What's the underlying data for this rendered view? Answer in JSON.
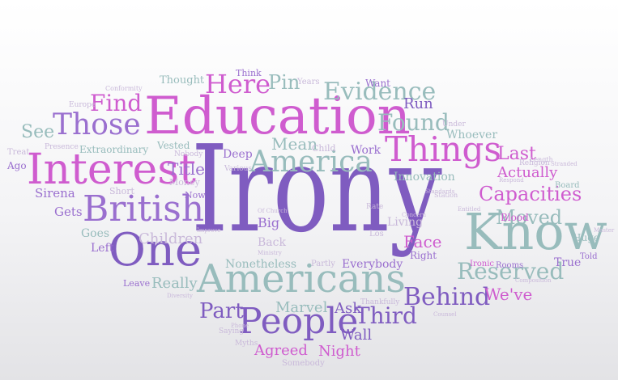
{
  "colors": {
    "purple": "#7f5cc0",
    "violet": "#9a6fcf",
    "magenta": "#cf5ccf",
    "pink": "#dd7fd9",
    "teal": "#98bcbc",
    "teal_dark": "#7faeae",
    "light": "#c9b9da"
  },
  "words": [
    {
      "text": "Irony",
      "color": "purple"
    },
    {
      "text": "Education",
      "color": "magenta"
    },
    {
      "text": "Interest",
      "color": "magenta"
    },
    {
      "text": "Americans",
      "color": "teal"
    },
    {
      "text": "Know",
      "color": "teal"
    },
    {
      "text": "British",
      "color": "violet"
    },
    {
      "text": "Things",
      "color": "magenta"
    },
    {
      "text": "One",
      "color": "purple"
    },
    {
      "text": "People",
      "color": "purple"
    },
    {
      "text": "America",
      "color": "teal"
    },
    {
      "text": "Those",
      "color": "violet"
    },
    {
      "text": "Evidence",
      "color": "teal"
    },
    {
      "text": "Here",
      "color": "magenta"
    },
    {
      "text": "Find",
      "color": "magenta"
    },
    {
      "text": "Found",
      "color": "teal"
    },
    {
      "text": "Capacities",
      "color": "magenta"
    },
    {
      "text": "Moved",
      "color": "teal"
    },
    {
      "text": "Reserved",
      "color": "teal"
    },
    {
      "text": "Behind",
      "color": "purple"
    },
    {
      "text": "Third",
      "color": "purple"
    },
    {
      "text": "Part",
      "color": "purple"
    },
    {
      "text": "Children",
      "color": "light"
    },
    {
      "text": "Mean",
      "color": "teal"
    },
    {
      "text": "Pin",
      "color": "teal"
    },
    {
      "text": "Last",
      "color": "magenta"
    },
    {
      "text": "Actually",
      "color": "magenta"
    },
    {
      "text": "See",
      "color": "teal"
    },
    {
      "text": "Title",
      "color": "violet"
    },
    {
      "text": "Face",
      "color": "magenta"
    },
    {
      "text": "Run",
      "color": "purple"
    },
    {
      "text": "We've",
      "color": "magenta"
    },
    {
      "text": "Marvel",
      "color": "teal"
    },
    {
      "text": "Wall",
      "color": "purple"
    },
    {
      "text": "Agreed",
      "color": "magenta"
    },
    {
      "text": "Night",
      "color": "magenta"
    },
    {
      "text": "Ask",
      "color": "purple"
    },
    {
      "text": "Really",
      "color": "teal"
    },
    {
      "text": "Nonetheless",
      "color": "teal"
    },
    {
      "text": "Everybody",
      "color": "violet"
    },
    {
      "text": "Sirena",
      "color": "violet"
    },
    {
      "text": "Gets",
      "color": "violet"
    },
    {
      "text": "Goes",
      "color": "teal"
    },
    {
      "text": "Left",
      "color": "violet"
    },
    {
      "text": "Work",
      "color": "violet"
    },
    {
      "text": "Deep",
      "color": "violet"
    },
    {
      "text": "Blood",
      "color": "magenta"
    },
    {
      "text": "Huge",
      "color": "teal"
    },
    {
      "text": "True",
      "color": "violet"
    },
    {
      "text": "Big",
      "color": "violet"
    },
    {
      "text": "Back",
      "color": "light"
    },
    {
      "text": "Living",
      "color": "light"
    },
    {
      "text": "Right",
      "color": "violet"
    },
    {
      "text": "Whoever",
      "color": "teal"
    },
    {
      "text": "Innovation",
      "color": "teal"
    },
    {
      "text": "Extraordinary",
      "color": "teal"
    },
    {
      "text": "Vested",
      "color": "teal"
    },
    {
      "text": "Money",
      "color": "light"
    },
    {
      "text": "Short",
      "color": "light"
    },
    {
      "text": "Now",
      "color": "violet"
    },
    {
      "text": "Think",
      "color": "violet"
    },
    {
      "text": "Thought",
      "color": "teal"
    },
    {
      "text": "Want",
      "color": "violet"
    },
    {
      "text": "Years",
      "color": "light"
    },
    {
      "text": "Ago",
      "color": "violet"
    },
    {
      "text": "Treat",
      "color": "light"
    },
    {
      "text": "Presence",
      "color": "light"
    },
    {
      "text": "Europe",
      "color": "light"
    },
    {
      "text": "Conformity",
      "color": "light"
    },
    {
      "text": "Nobody",
      "color": "light"
    },
    {
      "text": "Child",
      "color": "light"
    },
    {
      "text": "Various",
      "color": "light"
    },
    {
      "text": "Under",
      "color": "light"
    },
    {
      "text": "Religion",
      "color": "light"
    },
    {
      "text": "Length",
      "color": "light"
    },
    {
      "text": "Board",
      "color": "teal"
    },
    {
      "text": "Rooms",
      "color": "violet"
    },
    {
      "text": "Told",
      "color": "violet"
    },
    {
      "text": "Ironic",
      "color": "magenta"
    },
    {
      "text": "Leave",
      "color": "violet"
    },
    {
      "text": "Partly",
      "color": "light"
    },
    {
      "text": "Saying",
      "color": "light"
    },
    {
      "text": "Myths",
      "color": "light"
    },
    {
      "text": "Somebody",
      "color": "light"
    },
    {
      "text": "Thankfully",
      "color": "light"
    },
    {
      "text": "Los",
      "color": "light"
    },
    {
      "text": "Rate",
      "color": "light"
    },
    {
      "text": "Station",
      "color": "light"
    },
    {
      "text": "Diversity",
      "color": "light"
    },
    {
      "text": "Phone",
      "color": "light"
    },
    {
      "text": "Concern",
      "color": "light"
    },
    {
      "text": "Stranded",
      "color": "light"
    },
    {
      "text": "Respond",
      "color": "light"
    },
    {
      "text": "Counsel",
      "color": "light"
    },
    {
      "text": "Ministry",
      "color": "light"
    },
    {
      "text": "Composition",
      "color": "light"
    },
    {
      "text": "Entitled",
      "color": "light"
    },
    {
      "text": "Improve",
      "color": "light"
    },
    {
      "text": "Standards",
      "color": "light"
    },
    {
      "text": "Master",
      "color": "light"
    },
    {
      "text": "Of Church",
      "color": "light"
    }
  ]
}
